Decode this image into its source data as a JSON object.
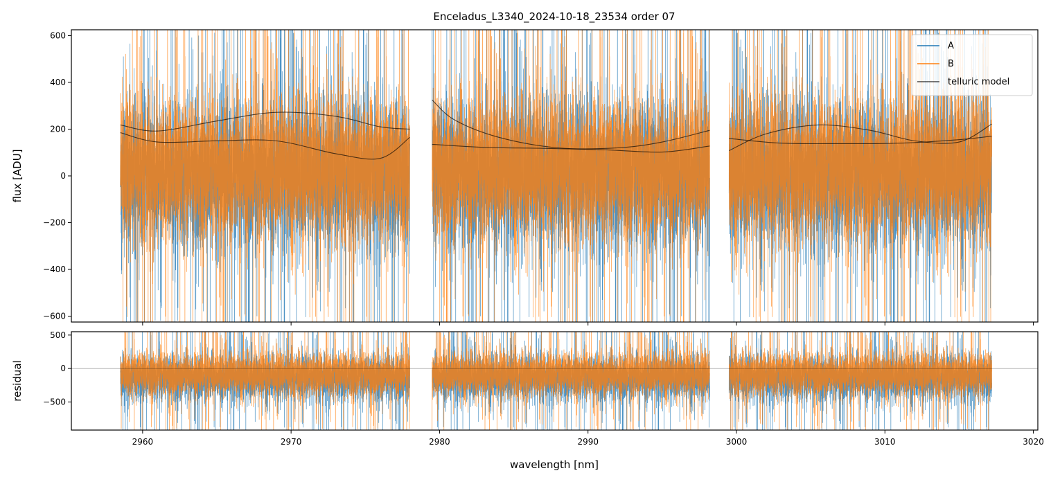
{
  "chart_data": {
    "type": "line",
    "title": "Enceladus_L3340_2024-10-18_23534  order 07",
    "xlabel": "wavelength [nm]",
    "xlim": [
      2955.2,
      3020.3
    ],
    "xticks": [
      2960,
      2970,
      2980,
      2990,
      3000,
      3010,
      3020
    ],
    "xtick_labels": [
      "2960",
      "2970",
      "2980",
      "2990",
      "3000",
      "3010",
      "3020"
    ],
    "colors": {
      "A": "#1f77b4",
      "B": "#ff7f0e",
      "telluric": "#000000"
    },
    "segments": [
      {
        "start": 2958.5,
        "end": 2978.0
      },
      {
        "start": 2979.5,
        "end": 2998.2
      },
      {
        "start": 2999.5,
        "end": 3017.2
      }
    ],
    "top_panel": {
      "ylabel": "flux [ADU]",
      "ylim": [
        -625,
        625
      ],
      "yticks": [
        -600,
        -400,
        -200,
        0,
        200,
        400,
        600
      ],
      "ytick_labels": [
        "−600",
        "−400",
        "−200",
        "0",
        "200",
        "400",
        "600"
      ],
      "series": [
        {
          "name": "A",
          "noise_center": 0,
          "noise_amplitude": 280
        },
        {
          "name": "B",
          "noise_center": 30,
          "noise_amplitude": 260
        }
      ],
      "telluric_model": [
        {
          "segment": 0,
          "curve_upper": {
            "x": [
              2958.5,
              2961,
              2965,
              2969,
              2973,
              2976,
              2978
            ],
            "y": [
              218,
              192,
              235,
              272,
              255,
              210,
              200
            ]
          },
          "curve_lower": {
            "x": [
              2958.5,
              2961,
              2965,
              2969,
              2973,
              2976,
              2978
            ],
            "y": [
              185,
              145,
              150,
              150,
              95,
              75,
              165
            ]
          }
        },
        {
          "segment": 1,
          "curve_upper": {
            "x": [
              2979.5,
              2981,
              2984,
              2988,
              2992,
              2995,
              2998.2
            ],
            "y": [
              325,
              240,
              165,
              120,
              120,
              145,
              195
            ]
          },
          "curve_lower": {
            "x": [
              2979.5,
              2983,
              2987,
              2991,
              2995,
              2998.2
            ],
            "y": [
              135,
              122,
              118,
              112,
              102,
              128
            ]
          }
        },
        {
          "segment": 2,
          "curve_upper": {
            "x": [
              2999.5,
              3002,
              3005.5,
              3009,
              3012,
              3015,
              3017.2
            ],
            "y": [
              108,
              180,
              218,
              195,
              150,
              145,
              222
            ]
          },
          "curve_lower": {
            "x": [
              2999.5,
              3003,
              3007,
              3011,
              3015,
              3017.2
            ],
            "y": [
              160,
              140,
              138,
              140,
              155,
              170
            ]
          }
        }
      ]
    },
    "bottom_panel": {
      "ylabel": "residual",
      "ylim": [
        -920,
        550
      ],
      "yticks": [
        -500,
        0,
        500
      ],
      "ytick_labels": [
        "−500",
        "0",
        "500"
      ],
      "zero_line": 0,
      "series": [
        {
          "name": "A",
          "noise_center": -150,
          "noise_amplitude": 300
        },
        {
          "name": "B",
          "noise_center": -80,
          "noise_amplitude": 280
        }
      ]
    },
    "legend": {
      "placement": "top-right",
      "entries": [
        "A",
        "B",
        "telluric model"
      ]
    }
  }
}
